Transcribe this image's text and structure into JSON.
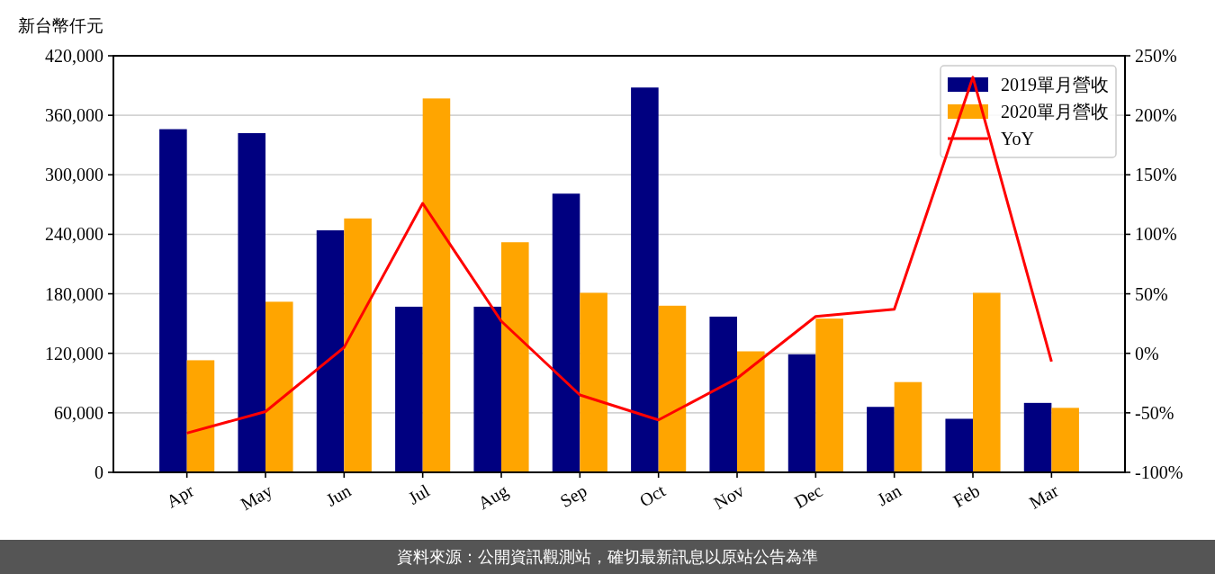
{
  "chart_data": {
    "type": "bar",
    "ylabel": "新台幣仟元",
    "categories": [
      "Apr",
      "May",
      "Jun",
      "Jul",
      "Aug",
      "Sep",
      "Oct",
      "Nov",
      "Dec",
      "Jan",
      "Feb",
      "Mar"
    ],
    "series": [
      {
        "name": "2019單月營收",
        "color": "#000080",
        "values": [
          346000,
          342000,
          244000,
          167000,
          167000,
          281000,
          388000,
          157000,
          119000,
          66000,
          54000,
          70000
        ]
      },
      {
        "name": "2020單月營收",
        "color": "#ffa500",
        "values": [
          113000,
          172000,
          256000,
          377000,
          232000,
          181000,
          168000,
          122000,
          155000,
          91000,
          181000,
          65000
        ]
      },
      {
        "name": "YoY",
        "type": "line",
        "axis": "y2",
        "color": "#ff0000",
        "values": [
          -67,
          -49,
          5,
          126,
          27,
          -35,
          -56,
          -21,
          31,
          37,
          232,
          -7
        ]
      }
    ],
    "ylim": [
      0,
      420000
    ],
    "yticks": [
      0,
      {
        "value": 60000,
        "label": "60,000"
      },
      {
        "value": 120000,
        "label": "120,000"
      },
      {
        "value": 180000,
        "label": "180,000"
      },
      {
        "value": 240000,
        "label": "240,000"
      },
      {
        "value": 300000,
        "label": "300,000"
      },
      {
        "value": 360000,
        "label": "360,000"
      },
      {
        "value": 420000,
        "label": "420,000"
      }
    ],
    "y2lim": [
      -100,
      250
    ],
    "y2ticks": [
      {
        "value": -100,
        "label": "-100%"
      },
      {
        "value": -50,
        "label": "-50%"
      },
      {
        "value": 0,
        "label": "0%"
      },
      {
        "value": 50,
        "label": "50%"
      },
      {
        "value": 100,
        "label": "100%"
      },
      {
        "value": 150,
        "label": "150%"
      },
      {
        "value": 200,
        "label": "200%"
      },
      {
        "value": 250,
        "label": "250%"
      }
    ],
    "grid": "y",
    "legend": "top right",
    "annotations": [
      "資料來源：公開資訊觀測站，確切最新訊息以原站公告為準"
    ]
  }
}
